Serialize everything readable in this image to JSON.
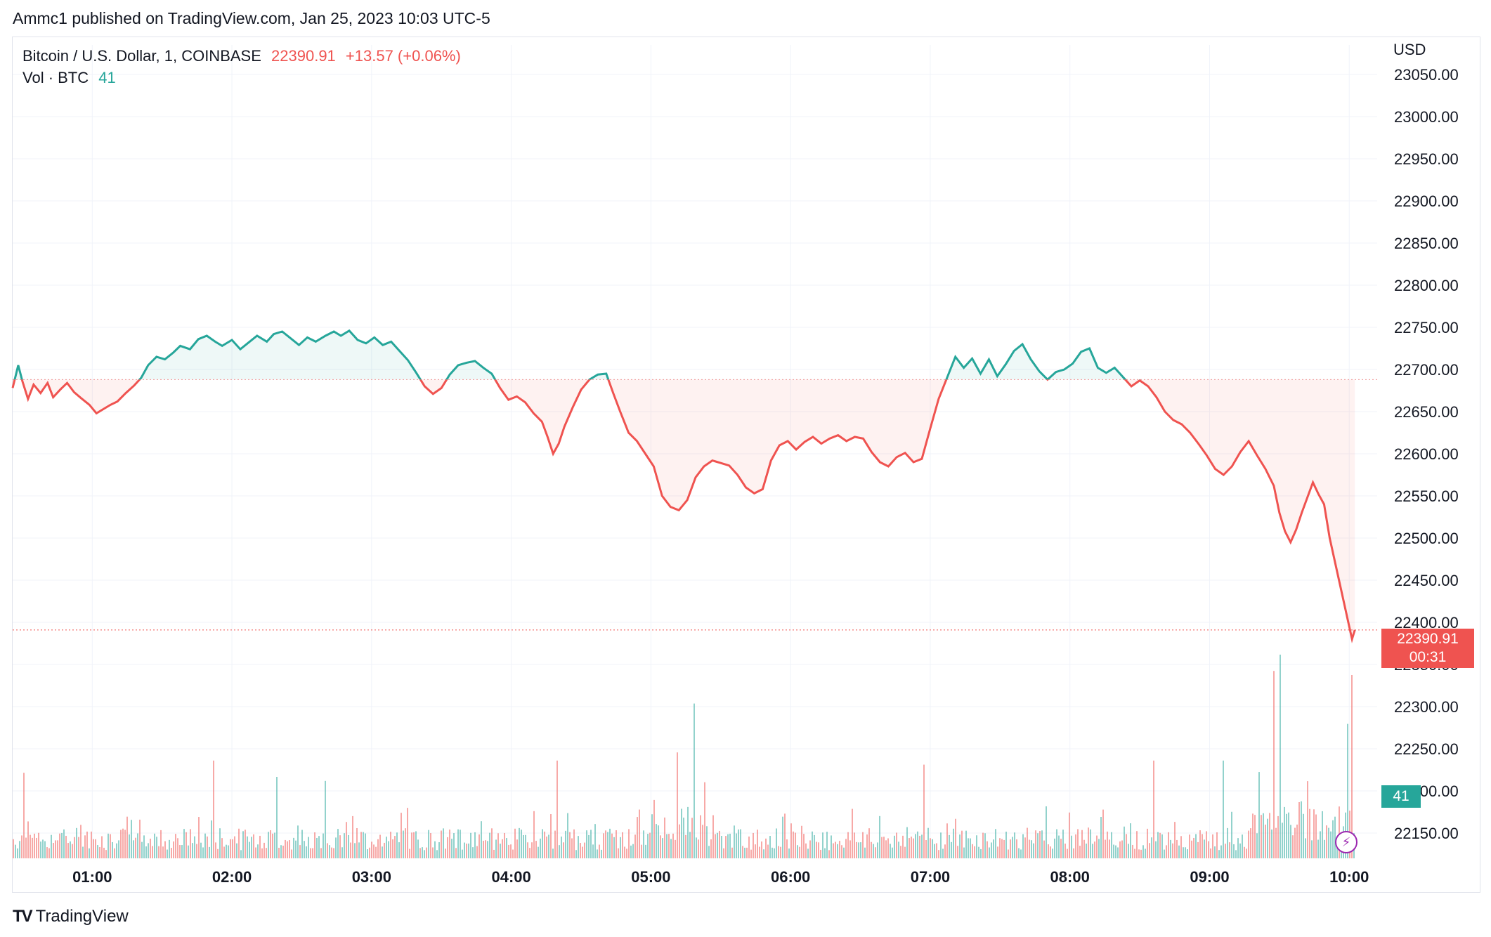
{
  "header": {
    "publisher": "Ammc1 published on TradingView.com, Jan 25, 2023 10:03 UTC-5"
  },
  "legend": {
    "symbol": "Bitcoin / U.S. Dollar, 1, COINBASE",
    "price": "22390.91",
    "change": "+13.57 (+0.06%)",
    "volume_label": "Vol · BTC",
    "volume_value": "41"
  },
  "axis": {
    "currency": "USD"
  },
  "price_tag": {
    "price": "22390.91",
    "countdown": "00:31"
  },
  "volume_tag": {
    "value": "41"
  },
  "footer": {
    "brand": "TradingView"
  },
  "colors": {
    "up": "#26a69a",
    "down": "#ef5350",
    "grid": "#f0f3fa",
    "text": "#131722"
  },
  "chart_data": {
    "type": "line",
    "title": "Bitcoin / U.S. Dollar, 1, COINBASE",
    "ylabel": "USD",
    "ylim": [
      22120,
      23085
    ],
    "xlim_hours": [
      0.43,
      10.2
    ],
    "baseline": 22688,
    "last_price": 22390.91,
    "y_ticks": [
      "22150.00",
      "22200.00",
      "22250.00",
      "22300.00",
      "22350.00",
      "22400.00",
      "22450.00",
      "22500.00",
      "22550.00",
      "22600.00",
      "22650.00",
      "22700.00",
      "22750.00",
      "22800.00",
      "22850.00",
      "22900.00",
      "22950.00",
      "23000.00",
      "23050.00"
    ],
    "x_ticks": [
      {
        "label": "01:00",
        "h": 1
      },
      {
        "label": "02:00",
        "h": 2
      },
      {
        "label": "03:00",
        "h": 3
      },
      {
        "label": "04:00",
        "h": 4
      },
      {
        "label": "05:00",
        "h": 5
      },
      {
        "label": "06:00",
        "h": 6
      },
      {
        "label": "07:00",
        "h": 7
      },
      {
        "label": "08:00",
        "h": 8
      },
      {
        "label": "09:00",
        "h": 9
      },
      {
        "label": "10:00",
        "h": 10
      }
    ],
    "series": [
      {
        "name": "BTC/USD close",
        "points": [
          [
            0.43,
            22678
          ],
          [
            0.47,
            22705
          ],
          [
            0.5,
            22686
          ],
          [
            0.54,
            22665
          ],
          [
            0.58,
            22682
          ],
          [
            0.63,
            22672
          ],
          [
            0.68,
            22684
          ],
          [
            0.72,
            22667
          ],
          [
            0.77,
            22676
          ],
          [
            0.82,
            22684
          ],
          [
            0.87,
            22673
          ],
          [
            0.92,
            22666
          ],
          [
            0.98,
            22658
          ],
          [
            1.03,
            22648
          ],
          [
            1.08,
            22653
          ],
          [
            1.13,
            22658
          ],
          [
            1.18,
            22662
          ],
          [
            1.24,
            22672
          ],
          [
            1.3,
            22681
          ],
          [
            1.35,
            22690
          ],
          [
            1.4,
            22705
          ],
          [
            1.46,
            22715
          ],
          [
            1.52,
            22712
          ],
          [
            1.58,
            22720
          ],
          [
            1.63,
            22728
          ],
          [
            1.7,
            22724
          ],
          [
            1.76,
            22736
          ],
          [
            1.82,
            22740
          ],
          [
            1.88,
            22733
          ],
          [
            1.93,
            22728
          ],
          [
            2,
            22735
          ],
          [
            2.06,
            22724
          ],
          [
            2.12,
            22732
          ],
          [
            2.18,
            22740
          ],
          [
            2.25,
            22733
          ],
          [
            2.3,
            22742
          ],
          [
            2.36,
            22745
          ],
          [
            2.42,
            22737
          ],
          [
            2.48,
            22729
          ],
          [
            2.54,
            22738
          ],
          [
            2.6,
            22733
          ],
          [
            2.67,
            22740
          ],
          [
            2.73,
            22745
          ],
          [
            2.78,
            22740
          ],
          [
            2.84,
            22746
          ],
          [
            2.9,
            22735
          ],
          [
            2.96,
            22731
          ],
          [
            3.02,
            22738
          ],
          [
            3.08,
            22729
          ],
          [
            3.14,
            22733
          ],
          [
            3.2,
            22722
          ],
          [
            3.26,
            22711
          ],
          [
            3.32,
            22696
          ],
          [
            3.38,
            22680
          ],
          [
            3.44,
            22671
          ],
          [
            3.5,
            22678
          ],
          [
            3.56,
            22694
          ],
          [
            3.62,
            22705
          ],
          [
            3.68,
            22708
          ],
          [
            3.74,
            22710
          ],
          [
            3.8,
            22702
          ],
          [
            3.86,
            22695
          ],
          [
            3.92,
            22678
          ],
          [
            3.98,
            22664
          ],
          [
            4.04,
            22668
          ],
          [
            4.1,
            22661
          ],
          [
            4.16,
            22648
          ],
          [
            4.22,
            22638
          ],
          [
            4.26,
            22620
          ],
          [
            4.3,
            22600
          ],
          [
            4.34,
            22612
          ],
          [
            4.38,
            22632
          ],
          [
            4.44,
            22655
          ],
          [
            4.5,
            22676
          ],
          [
            4.56,
            22688
          ],
          [
            4.62,
            22694
          ],
          [
            4.68,
            22695
          ],
          [
            4.73,
            22672
          ],
          [
            4.78,
            22650
          ],
          [
            4.84,
            22625
          ],
          [
            4.9,
            22615
          ],
          [
            4.96,
            22600
          ],
          [
            5.02,
            22585
          ],
          [
            5.08,
            22550
          ],
          [
            5.14,
            22537
          ],
          [
            5.2,
            22533
          ],
          [
            5.26,
            22545
          ],
          [
            5.32,
            22572
          ],
          [
            5.38,
            22585
          ],
          [
            5.44,
            22592
          ],
          [
            5.5,
            22589
          ],
          [
            5.56,
            22586
          ],
          [
            5.62,
            22575
          ],
          [
            5.68,
            22560
          ],
          [
            5.74,
            22553
          ],
          [
            5.8,
            22558
          ],
          [
            5.86,
            22592
          ],
          [
            5.92,
            22610
          ],
          [
            5.98,
            22615
          ],
          [
            6.04,
            22605
          ],
          [
            6.1,
            22614
          ],
          [
            6.16,
            22620
          ],
          [
            6.22,
            22612
          ],
          [
            6.28,
            22618
          ],
          [
            6.34,
            22622
          ],
          [
            6.4,
            22615
          ],
          [
            6.46,
            22620
          ],
          [
            6.52,
            22618
          ],
          [
            6.58,
            22602
          ],
          [
            6.64,
            22590
          ],
          [
            6.7,
            22585
          ],
          [
            6.76,
            22596
          ],
          [
            6.82,
            22601
          ],
          [
            6.88,
            22590
          ],
          [
            6.94,
            22594
          ],
          [
            7,
            22630
          ],
          [
            7.06,
            22665
          ],
          [
            7.12,
            22690
          ],
          [
            7.18,
            22715
          ],
          [
            7.24,
            22702
          ],
          [
            7.3,
            22713
          ],
          [
            7.36,
            22695
          ],
          [
            7.42,
            22712
          ],
          [
            7.48,
            22692
          ],
          [
            7.54,
            22706
          ],
          [
            7.6,
            22722
          ],
          [
            7.66,
            22730
          ],
          [
            7.72,
            22712
          ],
          [
            7.78,
            22698
          ],
          [
            7.84,
            22688
          ],
          [
            7.9,
            22697
          ],
          [
            7.96,
            22700
          ],
          [
            8.02,
            22707
          ],
          [
            8.08,
            22721
          ],
          [
            8.14,
            22725
          ],
          [
            8.2,
            22702
          ],
          [
            8.26,
            22696
          ],
          [
            8.32,
            22702
          ],
          [
            8.38,
            22691
          ],
          [
            8.44,
            22680
          ],
          [
            8.5,
            22687
          ],
          [
            8.56,
            22680
          ],
          [
            8.62,
            22667
          ],
          [
            8.68,
            22650
          ],
          [
            8.74,
            22640
          ],
          [
            8.8,
            22635
          ],
          [
            8.86,
            22625
          ],
          [
            8.92,
            22612
          ],
          [
            8.98,
            22598
          ],
          [
            9.04,
            22582
          ],
          [
            9.1,
            22575
          ],
          [
            9.16,
            22585
          ],
          [
            9.22,
            22602
          ],
          [
            9.28,
            22615
          ],
          [
            9.34,
            22598
          ],
          [
            9.4,
            22582
          ],
          [
            9.46,
            22562
          ],
          [
            9.5,
            22530
          ],
          [
            9.54,
            22508
          ],
          [
            9.58,
            22495
          ],
          [
            9.62,
            22510
          ],
          [
            9.66,
            22530
          ],
          [
            9.7,
            22548
          ],
          [
            9.74,
            22566
          ],
          [
            9.78,
            22552
          ],
          [
            9.82,
            22540
          ],
          [
            9.86,
            22500
          ],
          [
            9.9,
            22470
          ],
          [
            9.94,
            22440
          ],
          [
            9.98,
            22410
          ],
          [
            10.02,
            22380
          ],
          [
            10.04,
            22390.91
          ]
        ]
      }
    ],
    "volume": {
      "name": "Vol · BTC",
      "ylim": [
        0,
        500
      ],
      "spikes": [
        {
          "h": 5.3,
          "v": 380,
          "dir": "up"
        },
        {
          "h": 5.18,
          "v": 260,
          "dir": "down"
        },
        {
          "h": 4.33,
          "v": 240,
          "dir": "down"
        },
        {
          "h": 1.87,
          "v": 240,
          "dir": "down"
        },
        {
          "h": 9.5,
          "v": 500,
          "dir": "up"
        },
        {
          "h": 9.46,
          "v": 460,
          "dir": "down"
        },
        {
          "h": 10.02,
          "v": 450,
          "dir": "down"
        },
        {
          "h": 9.98,
          "v": 330,
          "dir": "up"
        },
        {
          "h": 6.95,
          "v": 230,
          "dir": "down"
        },
        {
          "h": 8.6,
          "v": 240,
          "dir": "down"
        },
        {
          "h": 9.1,
          "v": 240,
          "dir": "up"
        },
        {
          "h": 0.5,
          "v": 210,
          "dir": "down"
        },
        {
          "h": 2.31,
          "v": 200,
          "dir": "up"
        },
        {
          "h": 2.66,
          "v": 190,
          "dir": "up"
        }
      ],
      "last_value": 41
    }
  }
}
